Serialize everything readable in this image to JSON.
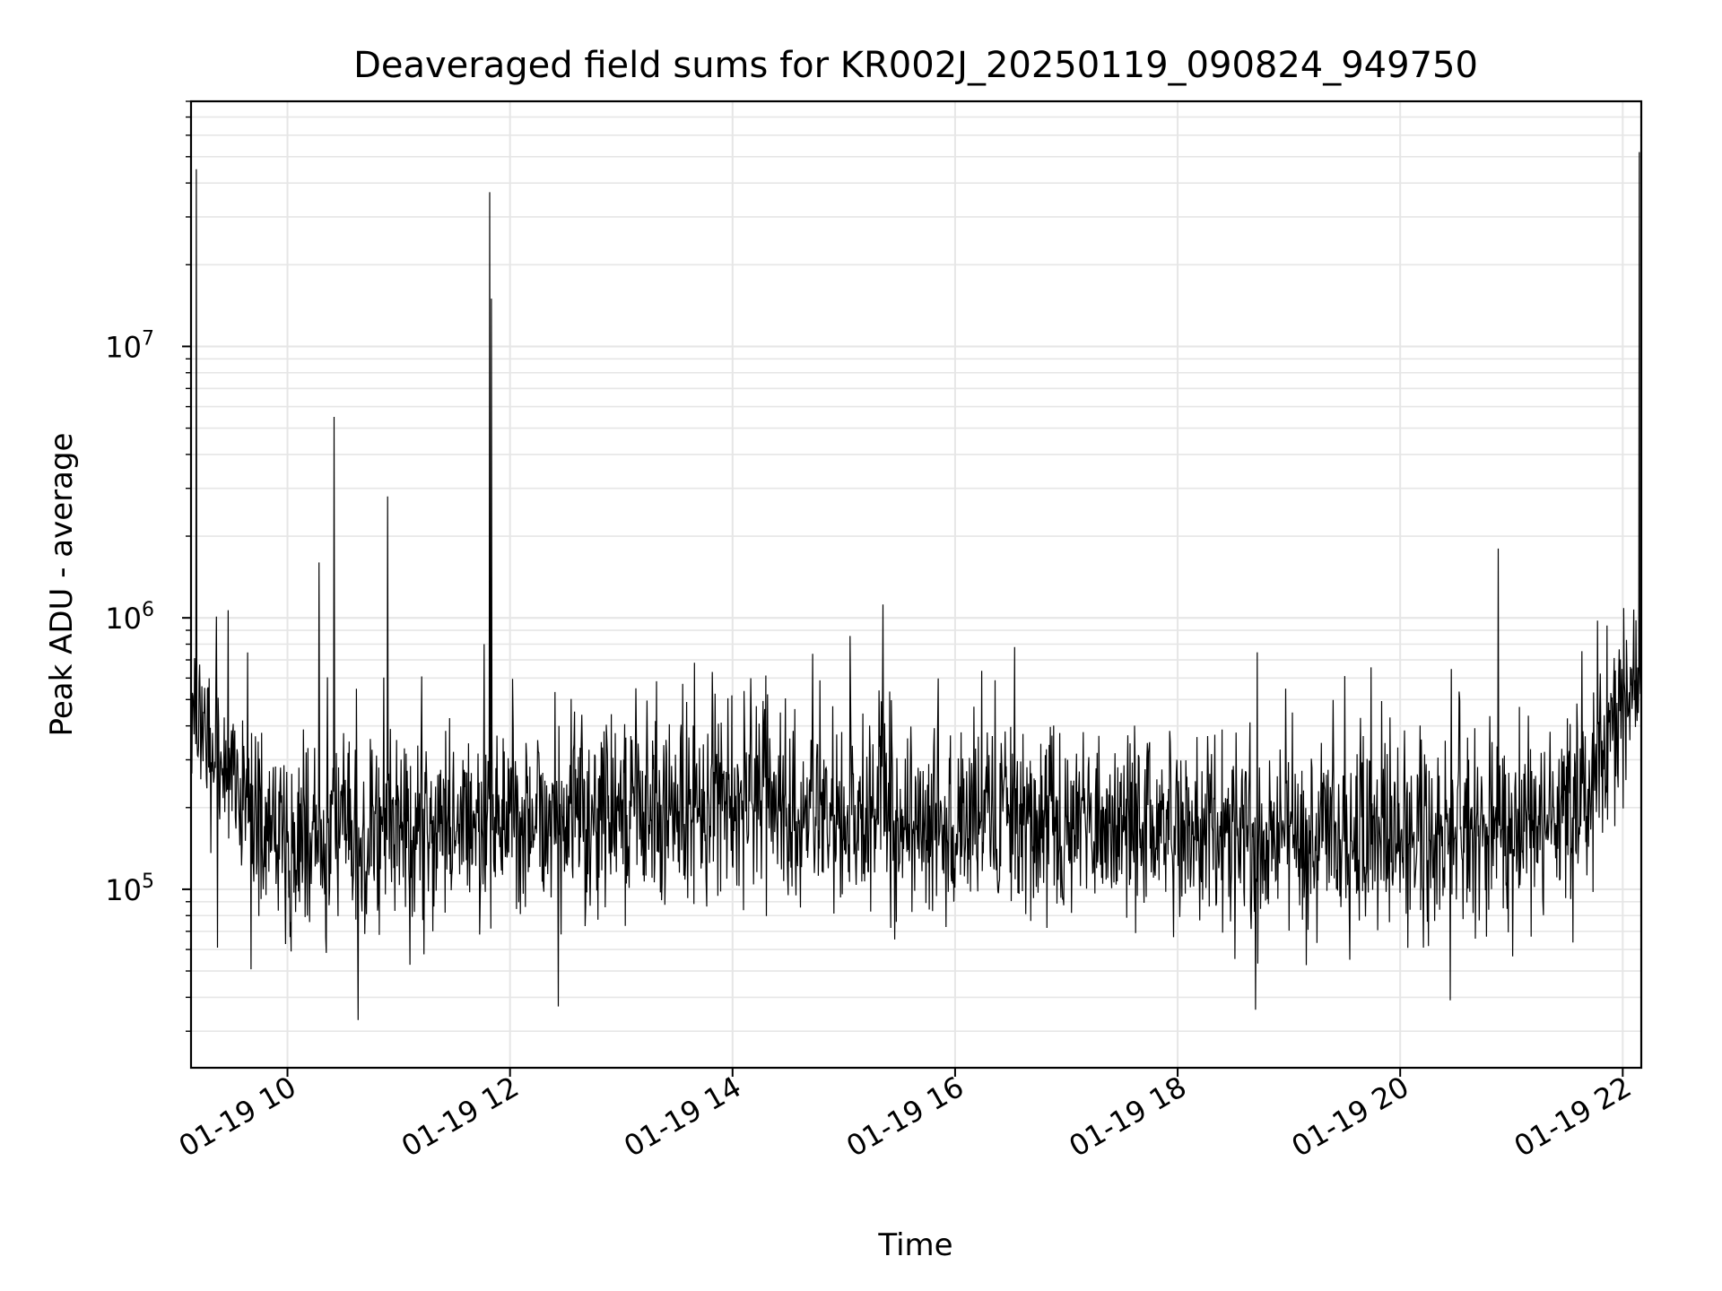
{
  "chart_data": {
    "type": "line",
    "title": "Deaveraged field sums for KR002J_20250119_090824_949750",
    "xlabel": "Time",
    "ylabel": "Peak ADU - average",
    "y_scale": "log",
    "xlim": [
      "2025-01-19 09:08",
      "2025-01-19 22:10"
    ],
    "ylim": [
      22000,
      80000000
    ],
    "x_tick_labels": [
      "01-19 10",
      "01-19 12",
      "01-19 14",
      "01-19 16",
      "01-19 18",
      "01-19 20",
      "01-19 22"
    ],
    "x_tick_hours": [
      10,
      12,
      14,
      16,
      18,
      20,
      22
    ],
    "y_tick_labels": [
      {
        "base": "10",
        "exp": "5",
        "value": 100000
      },
      {
        "base": "10",
        "exp": "6",
        "value": 1000000
      },
      {
        "base": "10",
        "exp": "7",
        "value": 10000000
      }
    ],
    "grid": true,
    "line_color": "#000000",
    "grid_color": "#e6e6e6",
    "baseline": [
      {
        "t": "09:10",
        "value": 400000
      },
      {
        "t": "09:25",
        "value": 250000
      },
      {
        "t": "10:00",
        "value": 150000
      },
      {
        "t": "11:00",
        "value": 170000
      },
      {
        "t": "12:00",
        "value": 175000
      },
      {
        "t": "13:00",
        "value": 185000
      },
      {
        "t": "14:00",
        "value": 195000
      },
      {
        "t": "15:00",
        "value": 185000
      },
      {
        "t": "16:00",
        "value": 175000
      },
      {
        "t": "17:00",
        "value": 168000
      },
      {
        "t": "18:00",
        "value": 165000
      },
      {
        "t": "19:00",
        "value": 162000
      },
      {
        "t": "20:00",
        "value": 155000
      },
      {
        "t": "21:00",
        "value": 150000
      },
      {
        "t": "21:40",
        "value": 200000
      },
      {
        "t": "22:00",
        "value": 450000
      },
      {
        "t": "22:10",
        "value": 600000
      }
    ],
    "spikes": [
      {
        "t": "09:11",
        "value": 45000000
      },
      {
        "t": "10:17",
        "value": 1600000
      },
      {
        "t": "10:25",
        "value": 5500000
      },
      {
        "t": "10:54",
        "value": 2800000
      },
      {
        "t": "11:46",
        "value": 800000
      },
      {
        "t": "11:49",
        "value": 37000000
      },
      {
        "t": "11:50",
        "value": 15000000
      },
      {
        "t": "16:32",
        "value": 780000
      },
      {
        "t": "20:53",
        "value": 1800000
      },
      {
        "t": "22:09",
        "value": 52000000
      }
    ],
    "dips": [
      {
        "t": "10:38",
        "value": 33000
      },
      {
        "t": "12:26",
        "value": 37000
      },
      {
        "t": "18:42",
        "value": 36000
      },
      {
        "t": "20:27",
        "value": 39000
      }
    ]
  }
}
